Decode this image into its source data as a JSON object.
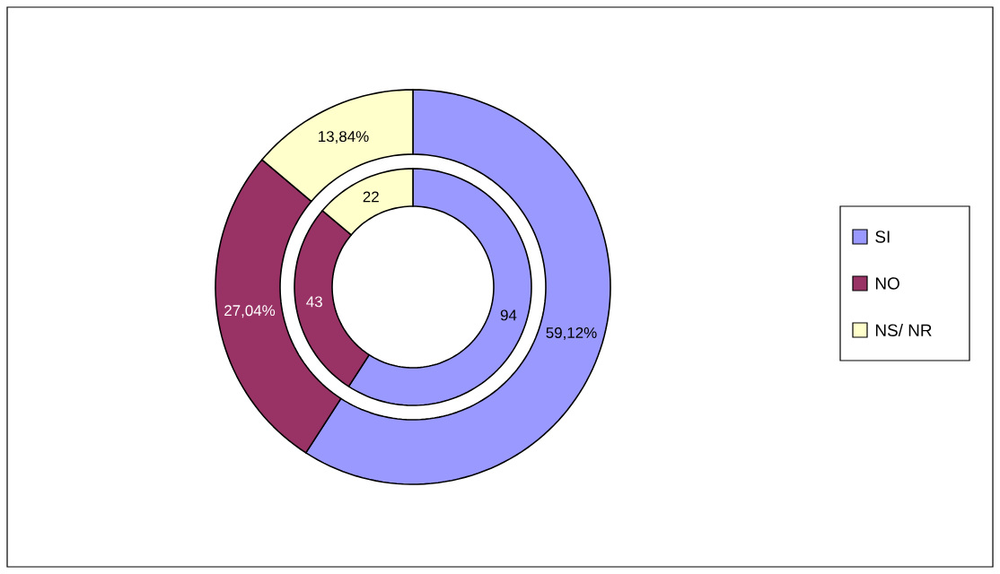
{
  "chart_data": {
    "type": "donut",
    "categories": [
      "SI",
      "NO",
      "NS/ NR"
    ],
    "colors": [
      "#9999ff",
      "#993366",
      "#ffffcc"
    ],
    "series": [
      {
        "values": [
          94,
          43,
          22
        ],
        "value_labels": [
          "94",
          "43",
          "22"
        ]
      },
      {
        "values": [
          59.12,
          27.04,
          13.84
        ],
        "value_labels": [
          "59,12%",
          "27,04%",
          "13,84%"
        ]
      }
    ],
    "legend": "right"
  }
}
